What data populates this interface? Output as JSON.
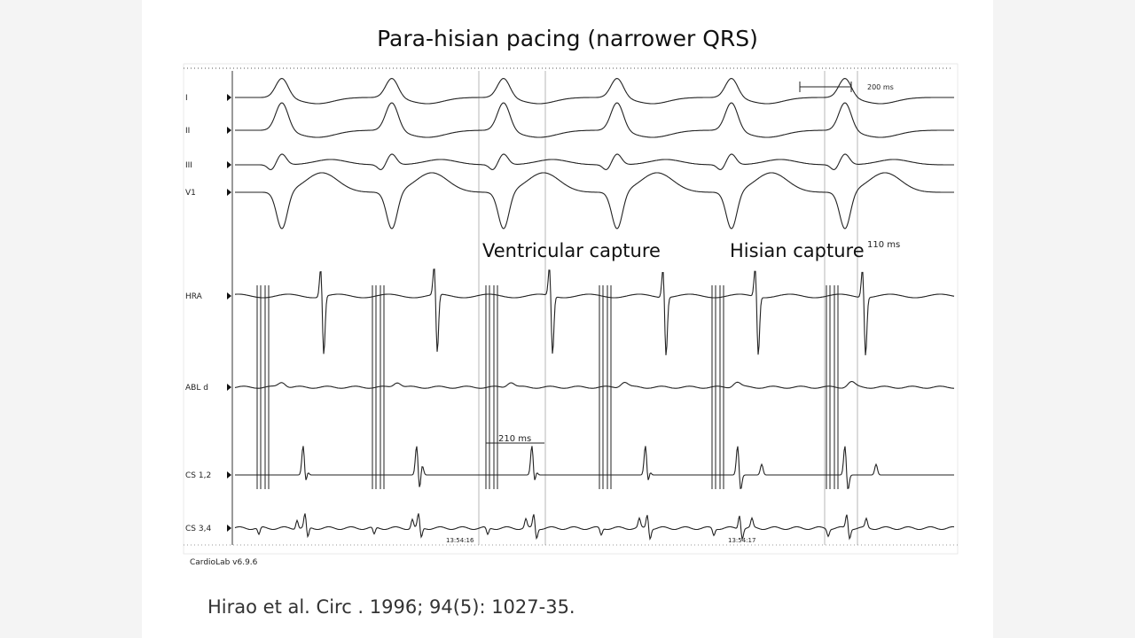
{
  "title": "Para-hisian pacing (narrower QRS)",
  "leads": [
    "I",
    "II",
    "III",
    "V1",
    "HRA",
    "ABL d",
    "CS 1,2",
    "CS 3,4"
  ],
  "annotations": {
    "scale": "200 ms",
    "ventricular": "Ventricular capture",
    "hisian": "Hisian capture",
    "hisian_interval": "110 ms",
    "ventricular_interval": "210 ms",
    "time1": "13:54:16",
    "time2": "13:54:17",
    "software": "CardioLab v6.9.6"
  },
  "citation": "Hirao et al. Circ . 1996; 94(5): 1027-35."
}
